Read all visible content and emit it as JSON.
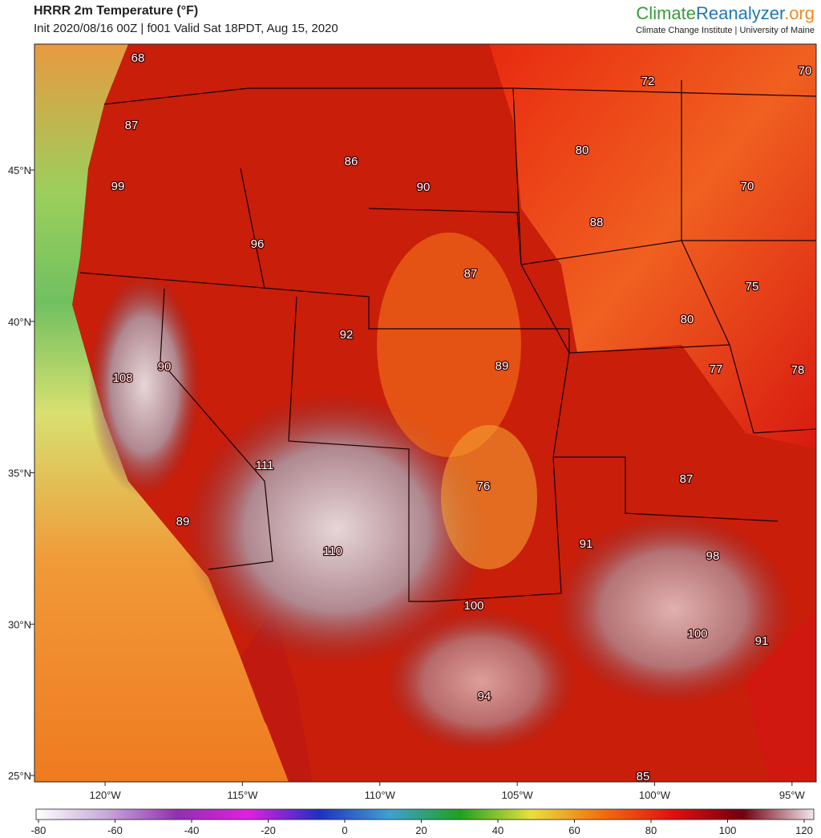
{
  "header": {
    "title": "HRRR 2m Temperature (°F)",
    "subtitle": "Init 2020/08/16 00Z | f001 Valid Sat 18PDT, Aug 15, 2020",
    "brand": [
      "Climate",
      "Reanalyzer",
      ".org"
    ],
    "affiliation": "Climate Change Institute | University of Maine"
  },
  "map": {
    "lon_range": [
      -122.57,
      -94.12
    ],
    "lat_range": [
      24.79,
      49.16
    ],
    "lon_ticks": [
      {
        "value": -120,
        "label": "120°W"
      },
      {
        "value": -115,
        "label": "115°W"
      },
      {
        "value": -110,
        "label": "110°W"
      },
      {
        "value": -105,
        "label": "105°W"
      },
      {
        "value": -100,
        "label": "100°W"
      },
      {
        "value": -95,
        "label": "95°W"
      }
    ],
    "lat_ticks": [
      {
        "value": 25,
        "label": "25°N"
      },
      {
        "value": 30,
        "label": "30°N"
      },
      {
        "value": 35,
        "label": "35°N"
      },
      {
        "value": 40,
        "label": "40°N"
      },
      {
        "value": 45,
        "label": "45°N"
      }
    ],
    "labels": [
      68,
      87,
      99,
      96,
      86,
      90,
      72,
      70,
      80,
      70,
      88,
      87,
      75,
      80,
      92,
      108,
      90,
      89,
      77,
      78,
      111,
      76,
      87,
      89,
      110,
      91,
      98,
      100,
      100,
      91,
      94,
      85
    ]
  },
  "colorbar": {
    "range": [
      -80,
      120
    ],
    "ticks": [
      -80,
      -60,
      -40,
      -20,
      0,
      20,
      40,
      60,
      80,
      100,
      120
    ],
    "colors": [
      "#ffffff",
      "#c8a8d8",
      "#9030b0",
      "#e020e0",
      "#2030c0",
      "#40a0d0",
      "#20a020",
      "#e8e040",
      "#f07010",
      "#e01010",
      "#700010",
      "#f4e8ec"
    ]
  }
}
